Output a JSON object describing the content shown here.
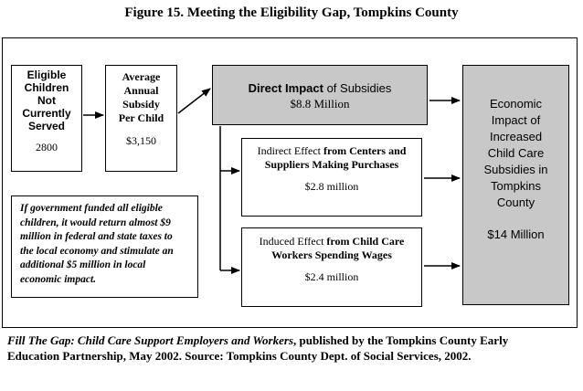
{
  "title": "Figure 15. Meeting the Eligibility Gap, Tompkins County",
  "eligible_box": {
    "lines": [
      "Eligible",
      "Children",
      "Not",
      "Currently",
      "Served"
    ],
    "value": "2800"
  },
  "subsidy_box": {
    "lines": [
      "Average",
      "Annual",
      "Subsidy",
      "Per Child"
    ],
    "value": "$3,150"
  },
  "direct_box": {
    "bold": "Direct Impact",
    "rest": " of Subsidies",
    "value": "$8.8 Million"
  },
  "indirect_box": {
    "pre": "Indirect Effect ",
    "bold_line1": "from Centers and",
    "bold_line2": "Suppliers Making Purchases",
    "value": "$2.8 million"
  },
  "induced_box": {
    "pre": "Induced Effect ",
    "bold_line1": "from Child Care",
    "bold_line2": "Workers Spending Wages",
    "value": "$2.4 million"
  },
  "economic_box": {
    "lines": [
      "Economic",
      "Impact of",
      "Increased",
      "Child Care",
      "Subsidies in",
      "Tompkins",
      "County"
    ],
    "value": "$14 Million"
  },
  "note_lines": [
    "If government funded all eligible",
    "children, it would return almost $9",
    "million in federal and state taxes to",
    "the local economy and stimulate an",
    "additional $5 million in local",
    "economic impact."
  ],
  "caption": {
    "italic": "Fill The Gap: Child Care Support Employers and Workers",
    "line1_rest": ", published by the Tompkins County Early",
    "line2": "Education Partnership, May 2002.   Source: Tompkins County Dept. of  Social Services, 2002."
  }
}
